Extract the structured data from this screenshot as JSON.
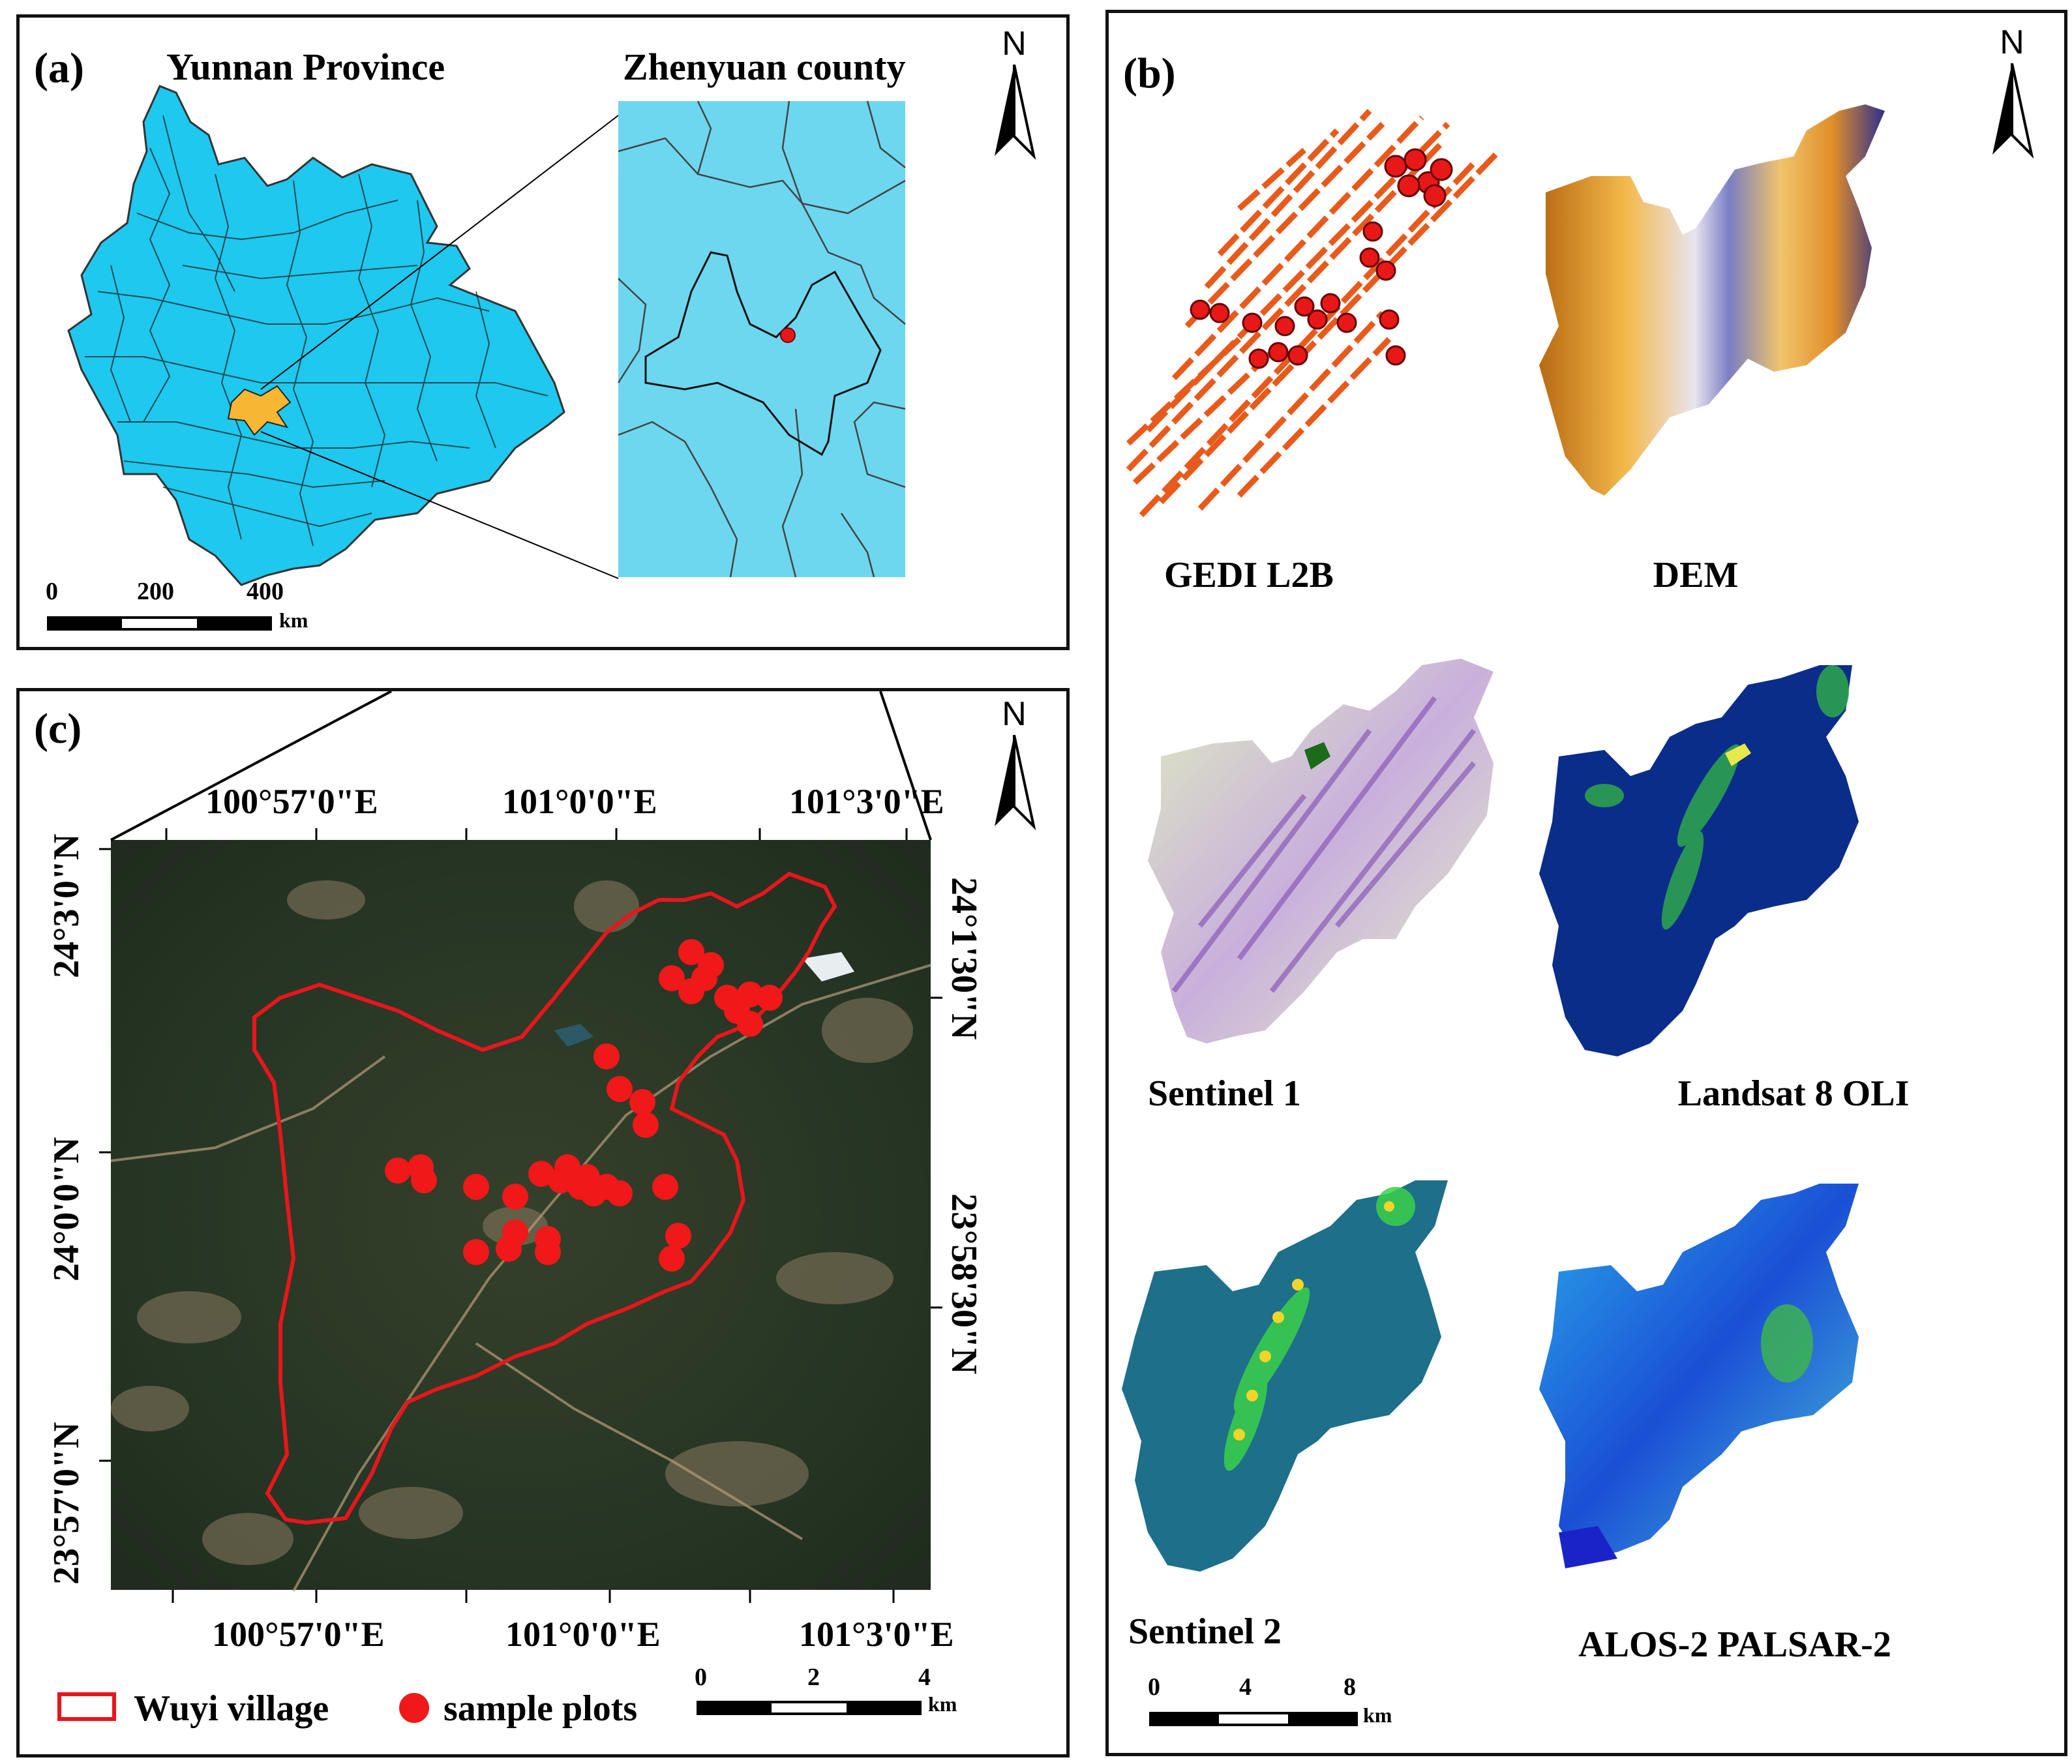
{
  "panel_a": {
    "label": "(a)",
    "title_left": "Yunnan Province",
    "title_right": "Zhenyuan county",
    "north": "N",
    "scale": {
      "ticks": [
        "0",
        "200",
        "400"
      ],
      "unit": "km"
    },
    "colors": {
      "province_fill": "#1ec8ee",
      "county_fill": "#f7b733",
      "inset_fill": "#6dd7ef",
      "point": "#e8161b"
    }
  },
  "panel_b": {
    "label": "(b)",
    "north": "N",
    "layers": [
      {
        "name": "GEDI L2B"
      },
      {
        "name": "DEM"
      },
      {
        "name": "Sentinel 1"
      },
      {
        "name": "Landsat 8 OLI"
      },
      {
        "name": "Sentinel 2"
      },
      {
        "name": "ALOS-2 PALSAR-2"
      }
    ],
    "scale": {
      "ticks": [
        "0",
        "4",
        "8"
      ],
      "unit": "km"
    }
  },
  "panel_c": {
    "label": "(c)",
    "north": "N",
    "top_ticks": [
      "100°57'0\"E",
      "101°0'0\"E",
      "101°3'0\"E"
    ],
    "bottom_ticks": [
      "100°57'0\"E",
      "101°0'0\"E",
      "101°3'0\"E"
    ],
    "left_ticks": [
      "24°3'0\"N",
      "24°0'0\"N",
      "23°57'0\"N"
    ],
    "right_ticks": [
      "24°1'30\"N",
      "23°58'30\"N"
    ],
    "legend": {
      "boundary": "Wuyi village",
      "plots": "sample plots"
    },
    "scale": {
      "ticks": [
        "0",
        "2",
        "4"
      ],
      "unit": "km"
    },
    "colors": {
      "boundary": "#e8161b",
      "plot": "#f01818"
    }
  }
}
